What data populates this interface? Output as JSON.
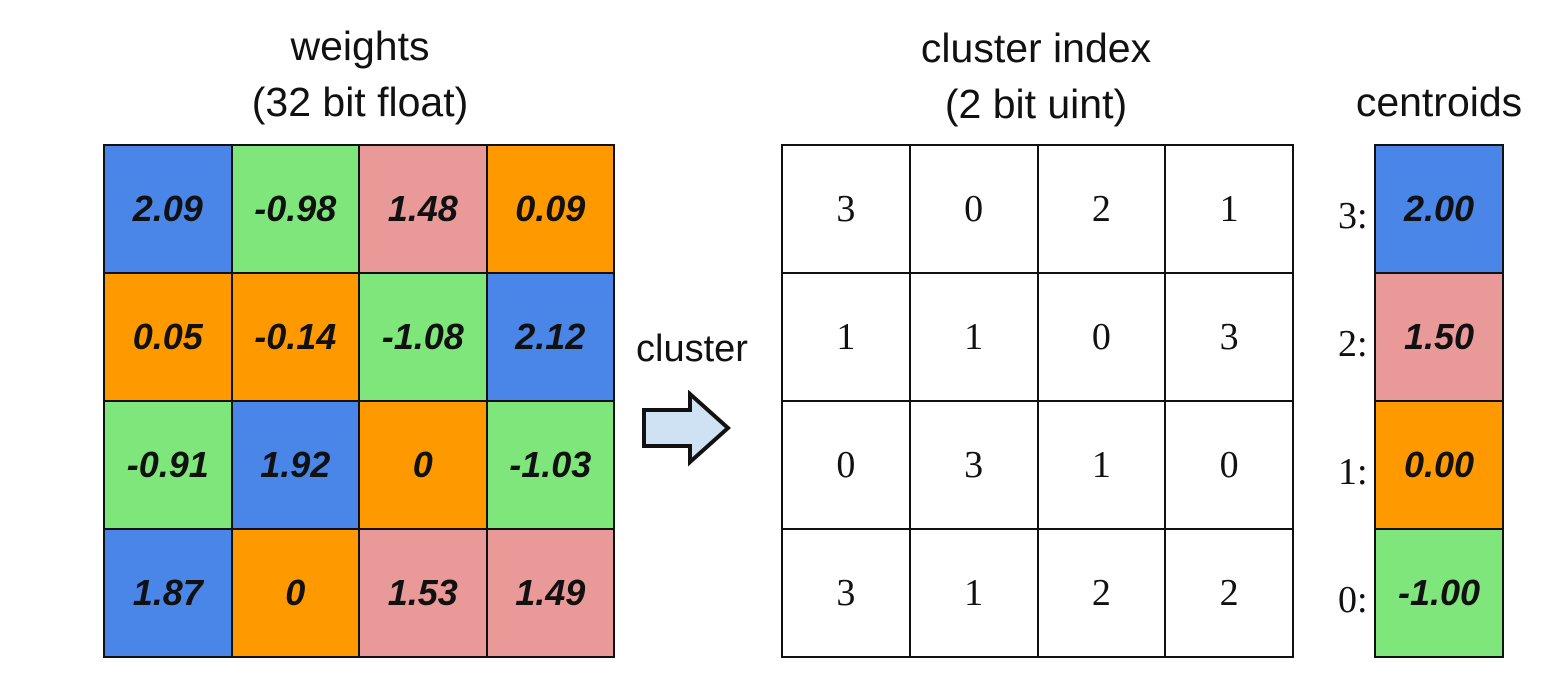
{
  "colors": {
    "c3": "#4a86e8",
    "c2": "#ea9999",
    "c1": "#ff9900",
    "c0": "#7ee67a"
  },
  "weights": {
    "title_line1": "weights",
    "title_line2": "(32 bit float)",
    "rows": [
      [
        {
          "v": "2.09",
          "c": "c3"
        },
        {
          "v": "-0.98",
          "c": "c0"
        },
        {
          "v": "1.48",
          "c": "c2"
        },
        {
          "v": "0.09",
          "c": "c1"
        }
      ],
      [
        {
          "v": "0.05",
          "c": "c1"
        },
        {
          "v": "-0.14",
          "c": "c1"
        },
        {
          "v": "-1.08",
          "c": "c0"
        },
        {
          "v": "2.12",
          "c": "c3"
        }
      ],
      [
        {
          "v": "-0.91",
          "c": "c0"
        },
        {
          "v": "1.92",
          "c": "c3"
        },
        {
          "v": "0",
          "c": "c1"
        },
        {
          "v": "-1.03",
          "c": "c0"
        }
      ],
      [
        {
          "v": "1.87",
          "c": "c3"
        },
        {
          "v": "0",
          "c": "c1"
        },
        {
          "v": "1.53",
          "c": "c2"
        },
        {
          "v": "1.49",
          "c": "c2"
        }
      ]
    ]
  },
  "arrow": {
    "label": "cluster",
    "icon": "right-arrow-icon",
    "fill": "#cfe2f3"
  },
  "cluster_index": {
    "title_line1": "cluster index",
    "title_line2": "(2 bit uint)",
    "rows": [
      [
        "3",
        "0",
        "2",
        "1"
      ],
      [
        "1",
        "1",
        "0",
        "3"
      ],
      [
        "0",
        "3",
        "1",
        "0"
      ],
      [
        "3",
        "1",
        "2",
        "2"
      ]
    ]
  },
  "centroids": {
    "title": "centroids",
    "items": [
      {
        "label": "3:",
        "value": "2.00",
        "c": "c3"
      },
      {
        "label": "2:",
        "value": "1.50",
        "c": "c2"
      },
      {
        "label": "1:",
        "value": "0.00",
        "c": "c1"
      },
      {
        "label": "0:",
        "value": "-1.00",
        "c": "c0"
      }
    ]
  }
}
